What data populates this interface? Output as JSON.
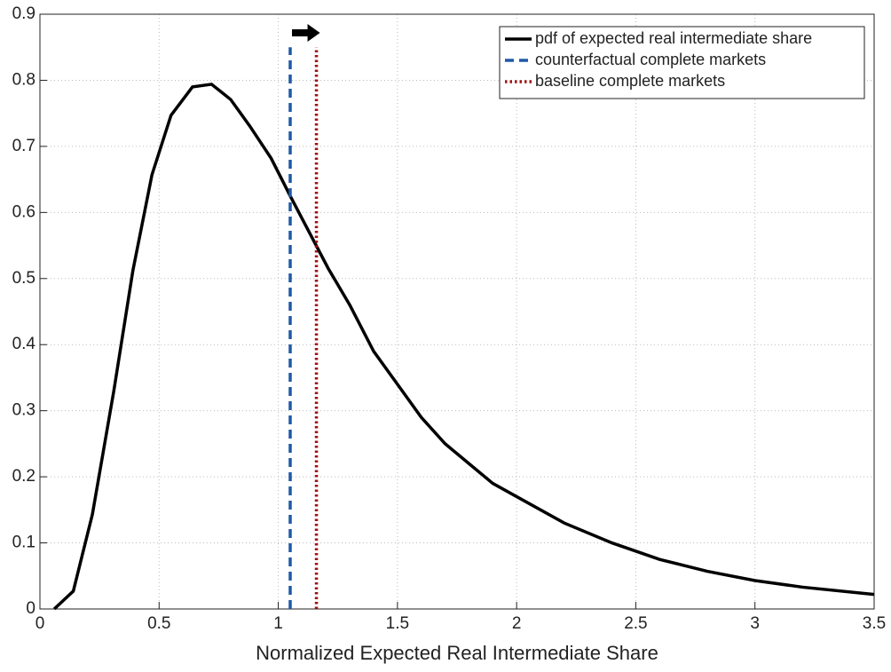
{
  "chart_data": {
    "type": "line",
    "xlabel": "Normalized Expected Real Intermediate Share",
    "xlim": [
      0,
      3.5
    ],
    "xticks": [
      0,
      0.5,
      1,
      1.5,
      2,
      2.5,
      3,
      3.5
    ],
    "ylim": [
      0,
      0.9
    ],
    "yticks": [
      0,
      0.1,
      0.2,
      0.3,
      0.4,
      0.5,
      0.6,
      0.7,
      0.8,
      0.9
    ],
    "grid": true,
    "legend": "upper right",
    "series": [
      {
        "name": "pdf of expected real intermediate share",
        "color": "#000000",
        "style": "solid",
        "x": [
          0.06,
          0.14,
          0.22,
          0.31,
          0.39,
          0.47,
          0.55,
          0.64,
          0.72,
          0.8,
          0.88,
          0.97,
          1.05,
          1.13,
          1.21,
          1.3,
          1.4,
          1.5,
          1.6,
          1.7,
          1.8,
          1.9,
          2.0,
          2.2,
          2.4,
          2.6,
          2.8,
          3.0,
          3.2,
          3.5
        ],
        "values": [
          0,
          0.027,
          0.143,
          0.33,
          0.512,
          0.657,
          0.747,
          0.79,
          0.794,
          0.771,
          0.731,
          0.682,
          0.625,
          0.57,
          0.515,
          0.46,
          0.39,
          0.34,
          0.29,
          0.25,
          0.22,
          0.19,
          0.17,
          0.13,
          0.1,
          0.075,
          0.057,
          0.043,
          0.033,
          0.022
        ]
      },
      {
        "name": "counterfactual complete markets",
        "color": "#1f5aa6",
        "style": "dash",
        "x": [
          1.05,
          1.05
        ],
        "values": [
          0,
          0.85
        ]
      },
      {
        "name": "baseline complete markets",
        "color": "#a01010",
        "style": "dot",
        "x": [
          1.16,
          1.16
        ],
        "values": [
          0,
          0.85
        ]
      }
    ]
  }
}
